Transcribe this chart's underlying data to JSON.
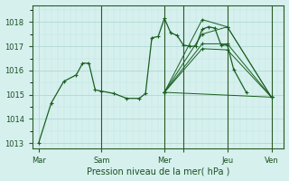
{
  "title": "Pression niveau de la mer( hPa )",
  "bg_color": "#d6f0ee",
  "grid_major_color": "#a8d4d0",
  "grid_minor_color": "#c0e4e0",
  "line_color": "#1a6020",
  "ylim": [
    1012.8,
    1018.7
  ],
  "yticks": [
    1013,
    1014,
    1015,
    1016,
    1017,
    1018
  ],
  "xlim": [
    0,
    40
  ],
  "day_ticks": [
    1,
    11,
    21,
    24,
    31,
    38
  ],
  "day_labels": [
    "Mar",
    "Sam",
    "Mer",
    "",
    "Jeu",
    "Ven"
  ],
  "vlines": [
    11,
    21,
    24,
    31,
    38
  ],
  "fan_origin_x": 21,
  "fan_origin_y": 1015.1,
  "fan_lines": [
    {
      "x": [
        21,
        27,
        31,
        38
      ],
      "y": [
        1015.1,
        1018.1,
        1017.8,
        1014.9
      ]
    },
    {
      "x": [
        21,
        27,
        31,
        38
      ],
      "y": [
        1015.1,
        1017.5,
        1017.8,
        1014.9
      ]
    },
    {
      "x": [
        21,
        27,
        31,
        38
      ],
      "y": [
        1015.1,
        1017.1,
        1017.1,
        1014.9
      ]
    },
    {
      "x": [
        21,
        27,
        31,
        38
      ],
      "y": [
        1015.1,
        1016.9,
        1016.85,
        1014.9
      ]
    },
    {
      "x": [
        21,
        38
      ],
      "y": [
        1015.1,
        1014.9
      ]
    }
  ],
  "main_line_x": [
    1,
    3,
    5,
    7,
    8,
    9,
    10,
    11,
    13,
    15,
    17,
    18,
    19,
    20,
    21,
    22,
    23,
    24,
    25,
    26,
    27,
    28,
    29,
    30,
    31,
    32,
    34
  ],
  "main_line_y": [
    1013.0,
    1014.65,
    1015.55,
    1015.82,
    1016.3,
    1016.3,
    1015.2,
    1015.15,
    1015.05,
    1014.85,
    1014.85,
    1015.05,
    1017.35,
    1017.4,
    1018.15,
    1017.55,
    1017.45,
    1017.05,
    1017.0,
    1017.0,
    1017.7,
    1017.8,
    1017.75,
    1017.05,
    1017.05,
    1016.05,
    1015.1
  ]
}
